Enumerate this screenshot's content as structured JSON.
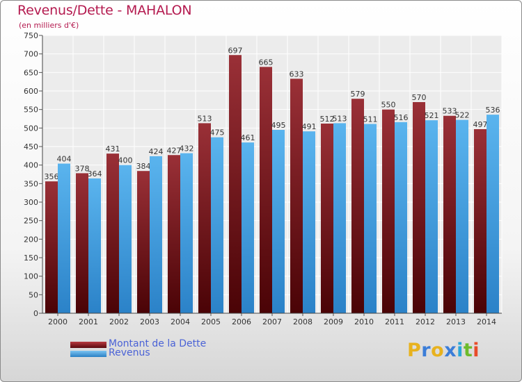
{
  "title": "Revenus/Dette - MAHALON",
  "subtitle": "(en milliers d'€)",
  "logo": {
    "letters": [
      "P",
      "r",
      "o",
      "x",
      "i",
      "t",
      "i"
    ],
    "colors": [
      "#e8b21e",
      "#3b7dd8",
      "#e8b21e",
      "#3b7dd8",
      "#2aa6d8",
      "#6dbb2c",
      "#e84c2a"
    ]
  },
  "chart_data": {
    "type": "bar",
    "categories": [
      "2000",
      "2001",
      "2002",
      "2003",
      "2004",
      "2005",
      "2006",
      "2007",
      "2008",
      "2009",
      "2010",
      "2011",
      "2012",
      "2013",
      "2014"
    ],
    "series": [
      {
        "name": "Montant de la Dette",
        "values": [
          356,
          378,
          431,
          384,
          427,
          513,
          697,
          665,
          633,
          512,
          579,
          550,
          570,
          533,
          497
        ],
        "color": "#7a1418"
      },
      {
        "name": "Revenus",
        "values": [
          404,
          364,
          400,
          424,
          432,
          475,
          461,
          495,
          491,
          513,
          511,
          516,
          521,
          522,
          536
        ],
        "color": "#3f9fe0"
      }
    ],
    "ylim": [
      0,
      750
    ],
    "yticks": [
      0,
      50,
      100,
      150,
      200,
      250,
      300,
      350,
      400,
      450,
      500,
      550,
      600,
      650,
      700,
      750
    ],
    "grid": true,
    "legend": "bottom-left"
  }
}
